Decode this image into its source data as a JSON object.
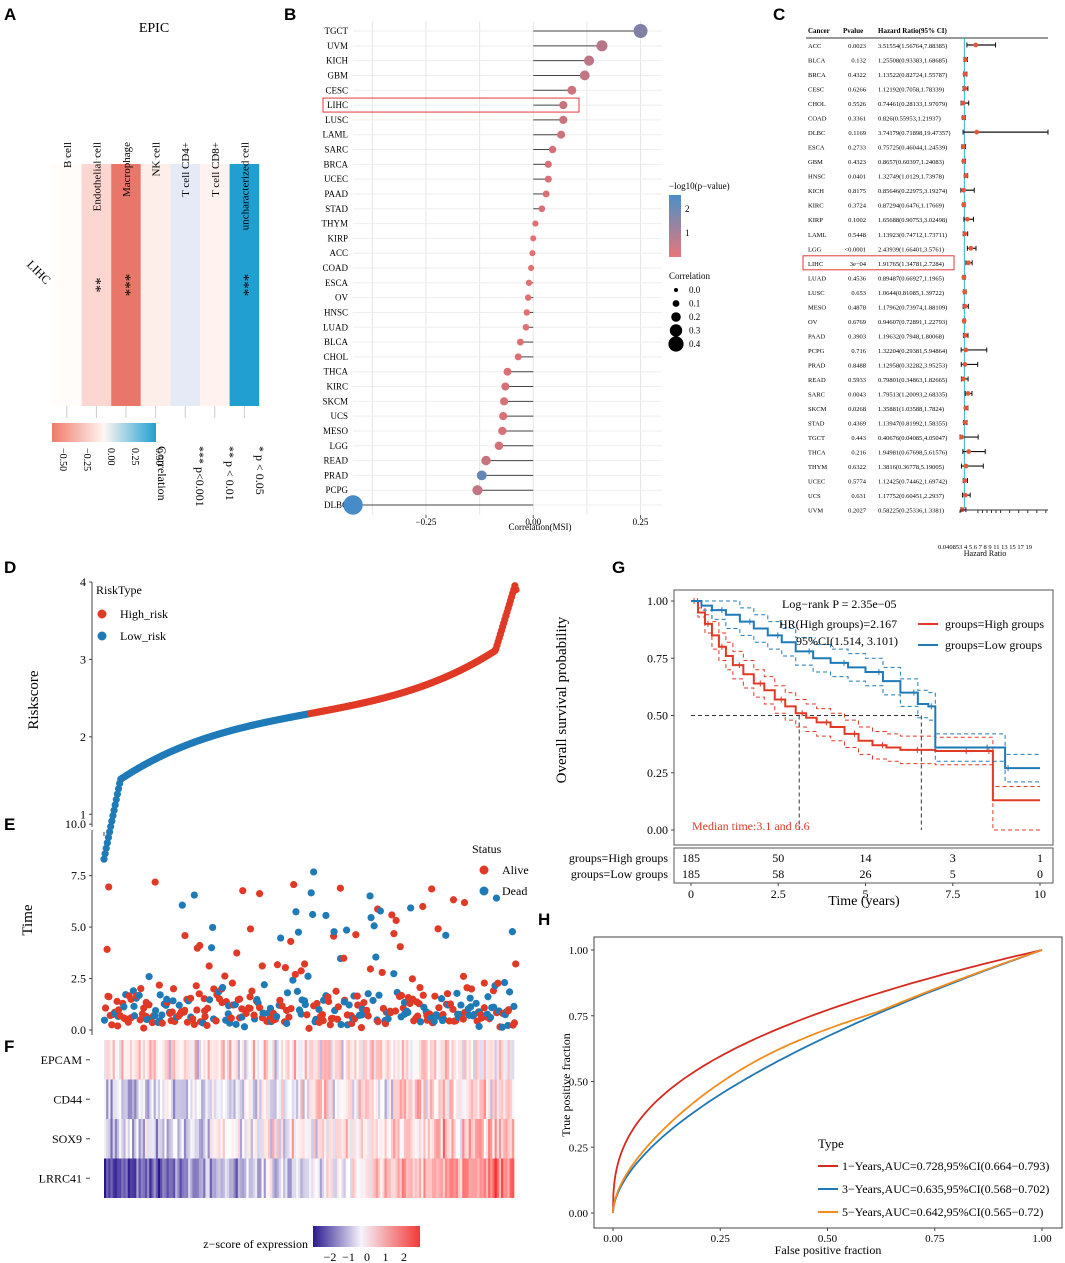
{
  "panel_labels": {
    "A": "A",
    "B": "B",
    "C": "C",
    "D": "D",
    "E": "E",
    "F": "F",
    "G": "G",
    "H": "H"
  },
  "chart_data": [
    {
      "id": "A",
      "type": "heatmap",
      "title": "EPIC",
      "row_label": "LIHC",
      "columns": [
        "B cell",
        "Endothelial cell",
        "Macrophage",
        "NK cell",
        "T cell CD4+",
        "T cell CD8+",
        "uncharacterized cell"
      ],
      "values": [
        0.0,
        -0.15,
        -0.45,
        -0.05,
        0.15,
        -0.03,
        0.55
      ],
      "colors": [
        "#fffcfa",
        "#fcd7d1",
        "#e8776a",
        "#fdeeea",
        "#e4ebf6",
        "#fff2ef",
        "#219fd0"
      ],
      "stars": [
        "",
        "**",
        "***",
        "",
        "",
        "",
        "***"
      ],
      "legend_title": "Correlation",
      "legend_ticks": [
        "−0.50",
        "−0.25",
        "0.00",
        "0.25",
        "0.50"
      ],
      "sig_legend": [
        "*** p<0.001",
        "** p < 0.01",
        "* p < 0.05"
      ]
    },
    {
      "id": "B",
      "type": "lollipop",
      "xlabel": "Correlation(MSI)",
      "xlim": [
        -0.42,
        0.3
      ],
      "xticks": [
        {
          "v": -0.25,
          "l": "−0.25"
        },
        {
          "v": 0,
          "l": "0.00"
        },
        {
          "v": 0.25,
          "l": "0.25"
        }
      ],
      "categories": [
        "TGCT",
        "UVM",
        "KICH",
        "GBM",
        "CESC",
        "LIHC",
        "LUSC",
        "LAML",
        "SARC",
        "BRCA",
        "UCEC",
        "PAAD",
        "STAD",
        "THYM",
        "KIRP",
        "ACC",
        "COAD",
        "ESCA",
        "OV",
        "HNSC",
        "LUAD",
        "BLCA",
        "CHOL",
        "THCA",
        "KIRC",
        "SKCM",
        "UCS",
        "MESO",
        "LGG",
        "READ",
        "PRAD",
        "PCPG",
        "DLBC"
      ],
      "values": [
        0.25,
        0.16,
        0.13,
        0.12,
        0.09,
        0.07,
        0.07,
        0.065,
        0.045,
        0.035,
        0.035,
        0.03,
        0.02,
        0.005,
        0.0,
        -0.002,
        -0.005,
        -0.01,
        -0.012,
        -0.015,
        -0.017,
        -0.03,
        -0.035,
        -0.06,
        -0.065,
        -0.068,
        -0.07,
        -0.072,
        -0.08,
        -0.11,
        -0.12,
        -0.13,
        -0.42
      ],
      "pvals": [
        2.0,
        1.1,
        1.0,
        0.9,
        0.7,
        0.8,
        0.75,
        0.7,
        0.6,
        0.55,
        0.55,
        0.55,
        0.5,
        0.4,
        0.35,
        0.35,
        0.35,
        0.35,
        0.35,
        0.35,
        0.4,
        0.45,
        0.45,
        0.5,
        0.55,
        0.55,
        0.55,
        0.55,
        0.6,
        0.8,
        2.5,
        0.9,
        3.0
      ],
      "highlight": "LIHC",
      "legend_p_title": "−log10(p−value)",
      "legend_p_ticks": [
        "2",
        "1"
      ],
      "legend_size_title": "Correlation",
      "legend_size_ticks": [
        "0.0",
        "0.1",
        "0.2",
        "0.3",
        "0.4"
      ]
    },
    {
      "id": "C",
      "type": "forest",
      "headers": [
        "Cancer",
        "Pvalue",
        "Hazard Ratio(95% CI)"
      ],
      "rows": [
        [
          "ACC",
          "0.0023",
          "3.51554(1.56764,7.88385)"
        ],
        [
          "BLCA",
          "0.132",
          "1.25508(0.93383,1.68685)"
        ],
        [
          "BRCA",
          "0.4322",
          "1.13522(0.82724,1.55787)"
        ],
        [
          "CESC",
          "0.6266",
          "1.12192(0.7058,1.78339)"
        ],
        [
          "CHOL",
          "0.5526",
          "0.74461(0.28133,1.97079)"
        ],
        [
          "COAD",
          "0.3361",
          "0.826(0.55953,1.21937)"
        ],
        [
          "DLBC",
          "0.1169",
          "3.74179(0.71898,19.47357)"
        ],
        [
          "ESCA",
          "0.2733",
          "0.75725(0.46044,1.24539)"
        ],
        [
          "GBM",
          "0.4323",
          "0.8657(0.60397,1.24083)"
        ],
        [
          "HNSC",
          "0.0401",
          "1.32749(1.0129,1.73978)"
        ],
        [
          "KICH",
          "0.8175",
          "0.85646(0.22975,3.19274)"
        ],
        [
          "KIRC",
          "0.3724",
          "0.87294(0.6476,1.17669)"
        ],
        [
          "KIRP",
          "0.1002",
          "1.65688(0.90753,3.02498)"
        ],
        [
          "LAML",
          "0.5448",
          "1.13923(0.74712,1.73711)"
        ],
        [
          "LGG",
          "<0.0001",
          "2.43939(1.66401,3.5761)"
        ],
        [
          "LIHC",
          "3e−04",
          "1.91765(1.34781,2.7284)"
        ],
        [
          "LUAD",
          "0.4536",
          "0.89487(0.66927,1.1965)"
        ],
        [
          "LUSC",
          "0.653",
          "1.0644(0.81085,1.39722)"
        ],
        [
          "MESO",
          "0.4878",
          "1.17962(0.73974,1.88109)"
        ],
        [
          "OV",
          "0.6769",
          "0.94607(0.72891,1.22793)"
        ],
        [
          "PAAD",
          "0.3903",
          "1.19632(0.7948,1.80068)"
        ],
        [
          "PCPG",
          "0.716",
          "1.32204(0.29381,5.94864)"
        ],
        [
          "PRAD",
          "0.8488",
          "1.12958(0.32282,3.95253)"
        ],
        [
          "READ",
          "0.5933",
          "0.79801(0.34863,1.82665)"
        ],
        [
          "SARC",
          "0.0043",
          "1.79513(1.20093,2.68335)"
        ],
        [
          "SKCM",
          "0.0268",
          "1.35881(1.03588,1.7824)"
        ],
        [
          "STAD",
          "0.4369",
          "1.13947(0.81992,1.58355)"
        ],
        [
          "TGCT",
          "0.443",
          "0.40676(0.04085,4.05047)"
        ],
        [
          "THCA",
          "0.216",
          "1.94981(0.67698,5.61576)"
        ],
        [
          "THYM",
          "0.6322",
          "1.3816(0.36778,5.19005)"
        ],
        [
          "UCEC",
          "0.5774",
          "1.12425(0.74462,1.69742)"
        ],
        [
          "UCS",
          "0.631",
          "1.17752(0.60451,2.2937)"
        ],
        [
          "UVM",
          "0.2027",
          "0.58225(0.25336,1.3381)"
        ]
      ],
      "hr": [
        3.51554,
        1.25508,
        1.13522,
        1.12192,
        0.74461,
        0.826,
        3.74179,
        0.75725,
        0.8657,
        1.32749,
        0.85646,
        0.87294,
        1.65688,
        1.13923,
        2.43939,
        1.91765,
        0.89487,
        1.0644,
        1.17962,
        0.94607,
        1.19632,
        1.32204,
        1.12958,
        0.79801,
        1.79513,
        1.35881,
        1.13947,
        0.40676,
        1.94981,
        1.3816,
        1.12425,
        1.17752,
        0.58225
      ],
      "lo": [
        1.56764,
        0.93383,
        0.82724,
        0.7058,
        0.28133,
        0.55953,
        0.71898,
        0.46044,
        0.60397,
        1.0129,
        0.22975,
        0.6476,
        0.90753,
        0.74712,
        1.66401,
        1.34781,
        0.66927,
        0.81085,
        0.73974,
        0.72891,
        0.7948,
        0.29381,
        0.32282,
        0.34863,
        1.20093,
        1.03588,
        0.81992,
        0.04085,
        0.67698,
        0.36778,
        0.74462,
        0.60451,
        0.25336
      ],
      "hi": [
        7.88385,
        1.68685,
        1.55787,
        1.78339,
        1.97079,
        1.21937,
        19.47357,
        1.24539,
        1.24083,
        1.73978,
        3.19274,
        1.17669,
        3.02498,
        1.73711,
        3.5761,
        2.7284,
        1.1965,
        1.39722,
        1.88109,
        1.22793,
        1.80068,
        5.94864,
        3.95253,
        1.82665,
        2.68335,
        1.7824,
        1.58355,
        4.05047,
        5.61576,
        5.19005,
        1.69742,
        2.2937,
        1.3381
      ],
      "highlight": "LIHC",
      "xlabel": "Hazard Ratio",
      "xtick_labels": [
        "0.040853",
        "4",
        "5",
        "6",
        "7",
        "8",
        "9",
        "11",
        "13",
        "15",
        "17",
        "19"
      ],
      "xtick_values": [
        0.04085,
        4,
        5,
        6,
        7,
        8,
        9,
        11,
        13,
        15,
        17,
        19
      ]
    },
    {
      "id": "D",
      "type": "scatter",
      "ylabel": "Riskscore",
      "yticks": [
        "1",
        "2",
        "3",
        "4"
      ],
      "ylim": [
        0.9,
        4.0
      ],
      "legend_title": "RiskType",
      "legend": [
        "High_risk",
        "Low_risk"
      ],
      "colors": {
        "high": "#e03a27",
        "low": "#1f7bb8"
      },
      "n": 370
    },
    {
      "id": "E",
      "type": "scatter",
      "ylabel": "Time",
      "yticks": [
        "0.0",
        "2.5",
        "5.0",
        "7.5",
        "10.0"
      ],
      "ylim": [
        0,
        10.3
      ],
      "legend_title": "Status",
      "legend": [
        "Alive",
        "Dead"
      ]
    },
    {
      "id": "F",
      "type": "heatmap",
      "genes": [
        "EPCAM",
        "CD44",
        "SOX9",
        "LRRC41"
      ],
      "legend_title": "z−score of expression",
      "legend_ticks": [
        "−2",
        "−1",
        "0",
        "1",
        "2"
      ]
    },
    {
      "id": "G",
      "type": "line",
      "xlabel": "Time (years)",
      "ylabel": "Overall survival probability",
      "xlim": [
        0,
        10.2
      ],
      "ylim": [
        0,
        1
      ],
      "xticks": [
        "0",
        "2.5",
        "5",
        "7.5",
        "10"
      ],
      "yticks": [
        "0.00",
        "0.25",
        "0.50",
        "0.75",
        "1.00"
      ],
      "annotations": [
        "Log−rank P = 2.35e−05",
        "HR(High groups)=2.167",
        "95%CI(1.514, 3.101)"
      ],
      "median_text": "Median time:3.1 and 6.6",
      "legend": [
        "groups=High groups",
        "groups=Low groups"
      ],
      "risk_table": {
        "rows": [
          "groups=High groups",
          "groups=Low groups"
        ],
        "times": [
          0,
          2.5,
          5,
          7.5,
          10
        ],
        "high": [
          "185",
          "50",
          "14",
          "3",
          "1"
        ],
        "low": [
          "185",
          "58",
          "26",
          "5",
          "0"
        ]
      },
      "series": [
        {
          "name": "High groups",
          "color": "#e03a27",
          "x": [
            0,
            0.2,
            0.4,
            0.6,
            0.8,
            1.0,
            1.2,
            1.5,
            1.8,
            2.1,
            2.4,
            2.7,
            3.0,
            3.3,
            3.6,
            4.0,
            4.4,
            4.8,
            5.2,
            5.6,
            6.0,
            6.6,
            7.0,
            8.0,
            8.6,
            8.65,
            10.0
          ],
          "y": [
            1.0,
            0.95,
            0.9,
            0.85,
            0.8,
            0.76,
            0.72,
            0.68,
            0.64,
            0.61,
            0.57,
            0.54,
            0.51,
            0.49,
            0.47,
            0.45,
            0.42,
            0.39,
            0.37,
            0.36,
            0.35,
            0.35,
            0.345,
            0.345,
            0.345,
            0.13,
            0.13
          ]
        },
        {
          "name": "Low groups",
          "color": "#1f7bb8",
          "x": [
            0,
            0.3,
            0.6,
            1.0,
            1.4,
            1.8,
            2.2,
            2.6,
            3.0,
            3.5,
            4.0,
            4.5,
            5.0,
            5.5,
            6.0,
            6.5,
            6.8,
            7.0,
            8.0,
            8.6,
            9.0,
            9.2,
            10.0
          ],
          "y": [
            1.0,
            0.98,
            0.96,
            0.94,
            0.91,
            0.88,
            0.85,
            0.82,
            0.78,
            0.75,
            0.73,
            0.71,
            0.69,
            0.65,
            0.6,
            0.55,
            0.54,
            0.36,
            0.36,
            0.36,
            0.27,
            0.27,
            0.27
          ]
        }
      ]
    },
    {
      "id": "H",
      "type": "line",
      "xlabel": "False positive fraction",
      "ylabel": "True positive fraction",
      "xlim": [
        0,
        1
      ],
      "ylim": [
        0,
        1
      ],
      "xticks": [
        "0.00",
        "0.25",
        "0.50",
        "0.75",
        "1.00"
      ],
      "yticks": [
        "0.00",
        "0.25",
        "0.50",
        "0.75",
        "1.00"
      ],
      "legend_title": "Type",
      "series": [
        {
          "name": "1−Years,AUC=0.728,95%CI(0.664−0.793)",
          "color": "#d62b1f",
          "auc": 0.728
        },
        {
          "name": "3−Years,AUC=0.635,95%CI(0.568−0.702)",
          "color": "#1f78b4",
          "auc": 0.635
        },
        {
          "name": "5−Years,AUC=0.642,95%CI(0.565−0.72)",
          "color": "#f28c1e",
          "auc": 0.642
        }
      ]
    }
  ]
}
